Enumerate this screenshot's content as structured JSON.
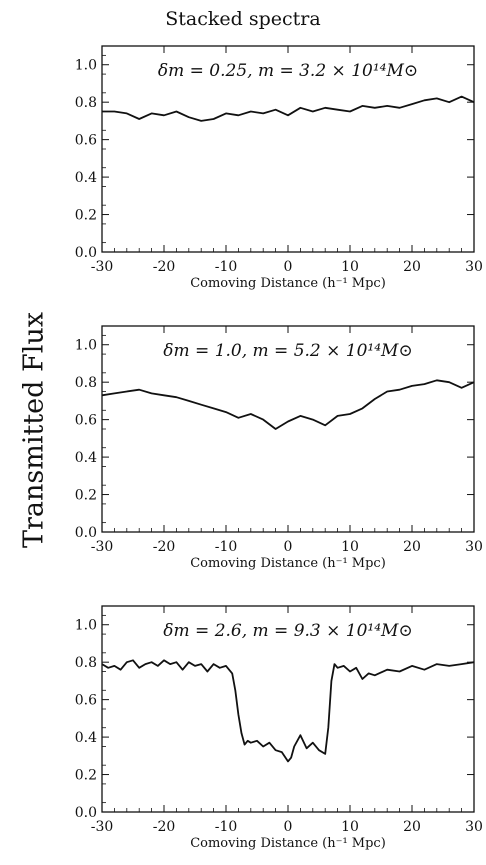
{
  "figure": {
    "title": "Stacked spectra",
    "ylabel": "Transmitted Flux"
  },
  "chart_data": [
    {
      "type": "line",
      "annotation": "δm = 0.25,   m = 3.2 × 10¹⁴M⊙",
      "xlabel": "Comoving Distance (h⁻¹ Mpc)",
      "xlim": [
        -30,
        30
      ],
      "ylim": [
        0.0,
        1.1
      ],
      "xticks": [
        -30,
        -20,
        -10,
        0,
        10,
        20,
        30
      ],
      "xtick_labels": [
        "-30",
        "-20",
        "-10",
        "0",
        "10",
        "20",
        "30"
      ],
      "yticks": [
        0.0,
        0.2,
        0.4,
        0.6,
        0.8,
        1.0
      ],
      "ytick_labels": [
        "0.0",
        "0.2",
        "0.4",
        "0.6",
        "0.8",
        "1.0"
      ],
      "grid": false,
      "series": [
        {
          "x": [
            -30,
            -28,
            -26,
            -24,
            -22,
            -20,
            -18,
            -16,
            -14,
            -12,
            -10,
            -8,
            -6,
            -4,
            -2,
            0,
            2,
            4,
            6,
            8,
            10,
            12,
            14,
            16,
            18,
            20,
            22,
            24,
            26,
            28,
            30
          ],
          "values": [
            0.75,
            0.75,
            0.74,
            0.71,
            0.74,
            0.73,
            0.75,
            0.72,
            0.7,
            0.71,
            0.74,
            0.73,
            0.75,
            0.74,
            0.76,
            0.73,
            0.77,
            0.75,
            0.77,
            0.76,
            0.75,
            0.78,
            0.77,
            0.78,
            0.77,
            0.79,
            0.81,
            0.82,
            0.8,
            0.83,
            0.8
          ]
        }
      ]
    },
    {
      "type": "line",
      "annotation": "δm = 1.0,   m = 5.2 × 10¹⁴M⊙",
      "xlabel": "Comoving Distance (h⁻¹ Mpc)",
      "xlim": [
        -30,
        30
      ],
      "ylim": [
        0.0,
        1.1
      ],
      "xticks": [
        -30,
        -20,
        -10,
        0,
        10,
        20,
        30
      ],
      "xtick_labels": [
        "-30",
        "-20",
        "-10",
        "0",
        "10",
        "20",
        "30"
      ],
      "yticks": [
        0.0,
        0.2,
        0.4,
        0.6,
        0.8,
        1.0
      ],
      "ytick_labels": [
        "0.0",
        "0.2",
        "0.4",
        "0.6",
        "0.8",
        "1.0"
      ],
      "grid": false,
      "series": [
        {
          "x": [
            -30,
            -28,
            -26,
            -24,
            -22,
            -20,
            -18,
            -16,
            -14,
            -12,
            -10,
            -8,
            -6,
            -4,
            -2,
            0,
            2,
            4,
            6,
            8,
            10,
            12,
            14,
            16,
            18,
            20,
            22,
            24,
            26,
            28,
            30
          ],
          "values": [
            0.73,
            0.74,
            0.75,
            0.76,
            0.74,
            0.73,
            0.72,
            0.7,
            0.68,
            0.66,
            0.64,
            0.61,
            0.63,
            0.6,
            0.55,
            0.59,
            0.62,
            0.6,
            0.57,
            0.62,
            0.63,
            0.66,
            0.71,
            0.75,
            0.76,
            0.78,
            0.79,
            0.81,
            0.8,
            0.77,
            0.8
          ]
        }
      ]
    },
    {
      "type": "line",
      "annotation": "δm = 2.6,   m = 9.3 × 10¹⁴M⊙",
      "xlabel": "Comoving Distance (h⁻¹ Mpc)",
      "xlim": [
        -30,
        30
      ],
      "ylim": [
        0.0,
        1.1
      ],
      "xticks": [
        -30,
        -20,
        -10,
        0,
        10,
        20,
        30
      ],
      "xtick_labels": [
        "-30",
        "-20",
        "-10",
        "0",
        "10",
        "20",
        "30"
      ],
      "yticks": [
        0.0,
        0.2,
        0.4,
        0.6,
        0.8,
        1.0
      ],
      "ytick_labels": [
        "0.0",
        "0.2",
        "0.4",
        "0.6",
        "0.8",
        "1.0"
      ],
      "grid": false,
      "series": [
        {
          "x": [
            -30,
            -29,
            -28,
            -27,
            -26,
            -25,
            -24,
            -23,
            -22,
            -21,
            -20,
            -19,
            -18,
            -17,
            -16,
            -15,
            -14,
            -13,
            -12,
            -11,
            -10,
            -9,
            -8.5,
            -8,
            -7.5,
            -7,
            -6.5,
            -6,
            -5,
            -4,
            -3,
            -2,
            -1,
            0,
            0.5,
            1,
            2,
            3,
            4,
            5,
            6,
            6.5,
            7,
            7.5,
            8,
            9,
            10,
            11,
            12,
            13,
            14,
            16,
            18,
            20,
            22,
            24,
            26,
            28,
            30
          ],
          "values": [
            0.79,
            0.77,
            0.78,
            0.76,
            0.8,
            0.81,
            0.77,
            0.79,
            0.8,
            0.78,
            0.81,
            0.79,
            0.8,
            0.76,
            0.8,
            0.78,
            0.79,
            0.75,
            0.79,
            0.77,
            0.78,
            0.74,
            0.65,
            0.52,
            0.42,
            0.36,
            0.38,
            0.37,
            0.38,
            0.35,
            0.37,
            0.33,
            0.32,
            0.27,
            0.29,
            0.35,
            0.41,
            0.34,
            0.37,
            0.33,
            0.31,
            0.45,
            0.7,
            0.79,
            0.77,
            0.78,
            0.75,
            0.77,
            0.71,
            0.74,
            0.73,
            0.76,
            0.75,
            0.78,
            0.76,
            0.79,
            0.78,
            0.79,
            0.8
          ]
        }
      ]
    }
  ]
}
